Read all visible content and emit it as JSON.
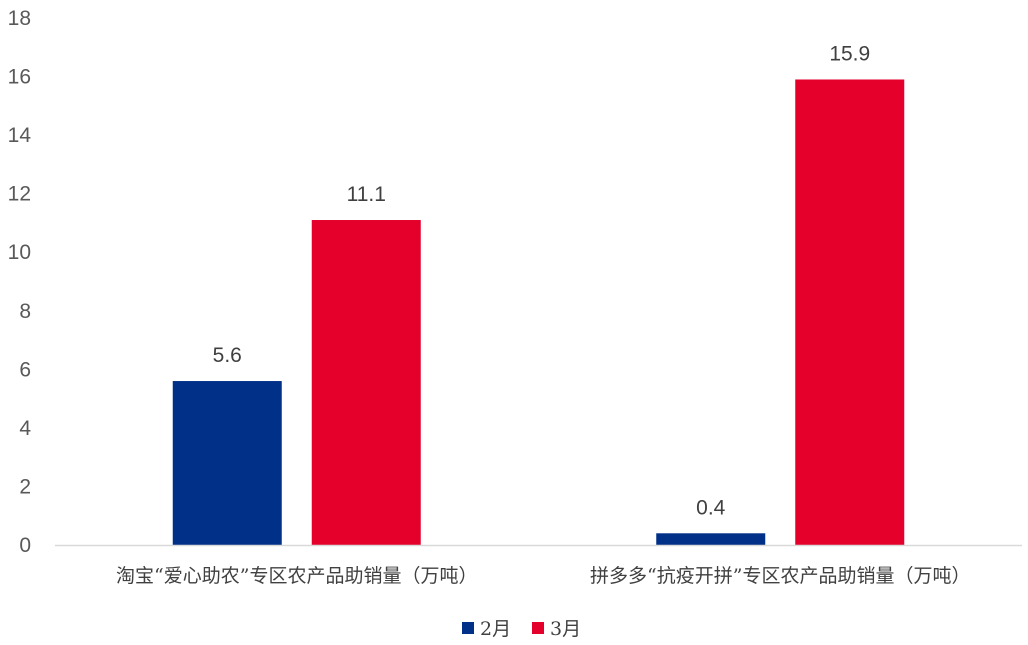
{
  "chart_data": {
    "type": "bar",
    "categories": [
      "淘宝“爱心助农”专区农产品助销量（万吨）",
      "拼多多“抗疫开拼”专区农产品助销量（万吨）"
    ],
    "series": [
      {
        "name": "2月",
        "values": [
          5.6,
          0.4
        ],
        "color": "#003087"
      },
      {
        "name": "3月",
        "values": [
          11.1,
          15.9
        ],
        "color": "#E4002B"
      }
    ],
    "y_ticks": [
      "0",
      "2",
      "4",
      "6",
      "8",
      "10",
      "12",
      "14",
      "16",
      "18"
    ],
    "ylim": [
      0,
      18
    ],
    "grid": false,
    "legend": "bottom-center",
    "data_labels": true
  }
}
